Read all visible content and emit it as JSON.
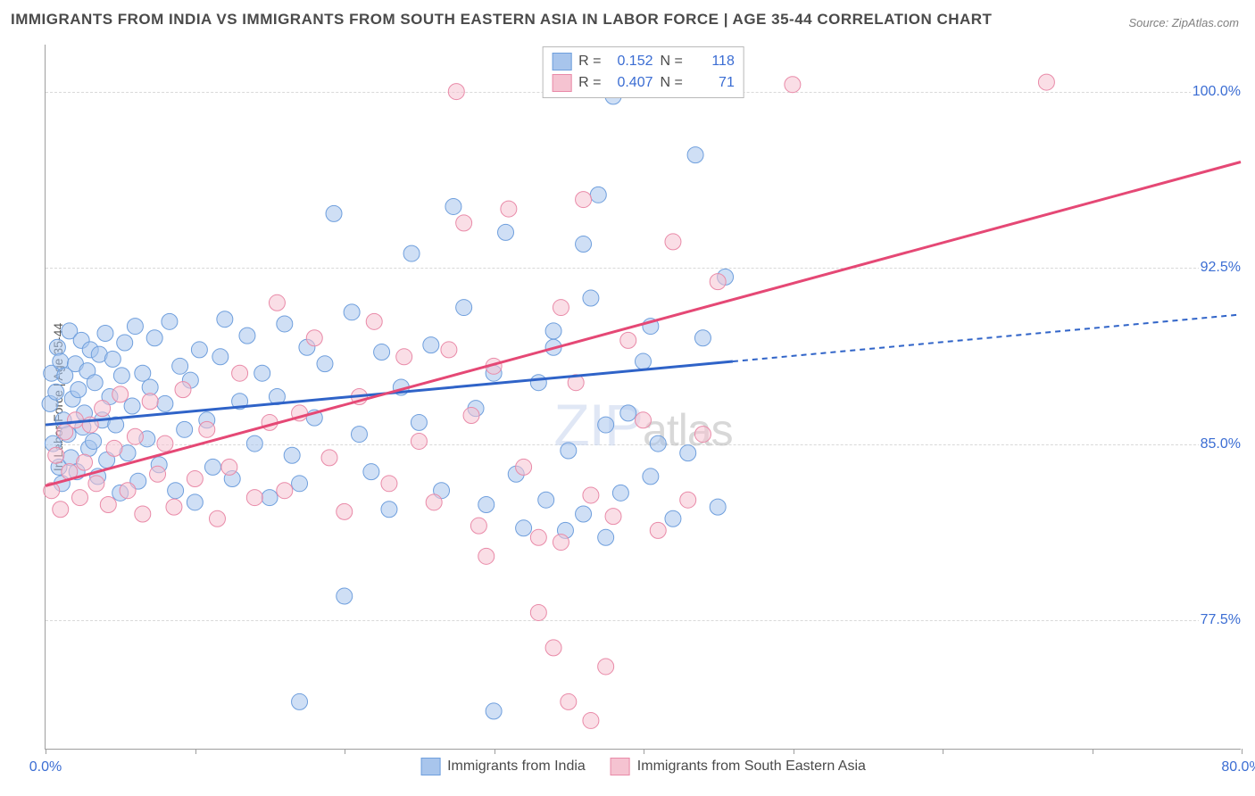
{
  "title": "IMMIGRANTS FROM INDIA VS IMMIGRANTS FROM SOUTH EASTERN ASIA IN LABOR FORCE | AGE 35-44 CORRELATION CHART",
  "source": "Source: ZipAtlas.com",
  "watermark_prefix": "ZIP",
  "watermark_suffix": "atlas",
  "y_axis_title": "In Labor Force | Age 35-44",
  "chart": {
    "type": "scatter",
    "background_color": "#ffffff",
    "grid_color": "#d9d9d9",
    "axis_color": "#9e9e9e",
    "tick_label_color": "#3b6dd3",
    "xlim": [
      0,
      80
    ],
    "ylim": [
      72,
      102
    ],
    "x_ticks": [
      0,
      10,
      20,
      30,
      40,
      50,
      60,
      70,
      80
    ],
    "x_tick_labels": [
      "0.0%",
      "",
      "",
      "",
      "",
      "",
      "",
      "",
      "80.0%"
    ],
    "y_grid": [
      77.5,
      85.0,
      92.5,
      100.0
    ],
    "y_tick_labels": [
      "77.5%",
      "85.0%",
      "92.5%",
      "100.0%"
    ],
    "marker_radius": 9,
    "marker_opacity": 0.55,
    "trend_line_width": 3
  },
  "series": [
    {
      "key": "india",
      "label": "Immigrants from India",
      "color_fill": "#a8c5ec",
      "color_stroke": "#6f9fdd",
      "line_color": "#2f63c8",
      "R": "0.152",
      "N": "118",
      "trend": {
        "x1": 0,
        "y1": 85.8,
        "x2_solid": 46,
        "y2_solid": 88.5,
        "x2": 80,
        "y2": 90.5
      },
      "points": [
        [
          0.3,
          86.7
        ],
        [
          0.4,
          88.0
        ],
        [
          0.5,
          85.0
        ],
        [
          0.7,
          87.2
        ],
        [
          0.8,
          89.1
        ],
        [
          0.9,
          84.0
        ],
        [
          1.0,
          88.5
        ],
        [
          1.1,
          83.3
        ],
        [
          1.2,
          86.0
        ],
        [
          1.3,
          87.9
        ],
        [
          1.5,
          85.4
        ],
        [
          1.6,
          89.8
        ],
        [
          1.7,
          84.4
        ],
        [
          1.8,
          86.9
        ],
        [
          2.0,
          88.4
        ],
        [
          2.1,
          83.8
        ],
        [
          2.2,
          87.3
        ],
        [
          2.4,
          89.4
        ],
        [
          2.5,
          85.7
        ],
        [
          2.6,
          86.3
        ],
        [
          2.8,
          88.1
        ],
        [
          2.9,
          84.8
        ],
        [
          3.0,
          89.0
        ],
        [
          3.2,
          85.1
        ],
        [
          3.3,
          87.6
        ],
        [
          3.5,
          83.6
        ],
        [
          3.6,
          88.8
        ],
        [
          3.8,
          86.0
        ],
        [
          4.0,
          89.7
        ],
        [
          4.1,
          84.3
        ],
        [
          4.3,
          87.0
        ],
        [
          4.5,
          88.6
        ],
        [
          4.7,
          85.8
        ],
        [
          5.0,
          82.9
        ],
        [
          5.1,
          87.9
        ],
        [
          5.3,
          89.3
        ],
        [
          5.5,
          84.6
        ],
        [
          5.8,
          86.6
        ],
        [
          6.0,
          90.0
        ],
        [
          6.2,
          83.4
        ],
        [
          6.5,
          88.0
        ],
        [
          6.8,
          85.2
        ],
        [
          7.0,
          87.4
        ],
        [
          7.3,
          89.5
        ],
        [
          7.6,
          84.1
        ],
        [
          8.0,
          86.7
        ],
        [
          8.3,
          90.2
        ],
        [
          8.7,
          83.0
        ],
        [
          9.0,
          88.3
        ],
        [
          9.3,
          85.6
        ],
        [
          9.7,
          87.7
        ],
        [
          10.0,
          82.5
        ],
        [
          10.3,
          89.0
        ],
        [
          10.8,
          86.0
        ],
        [
          11.2,
          84.0
        ],
        [
          11.7,
          88.7
        ],
        [
          12.0,
          90.3
        ],
        [
          12.5,
          83.5
        ],
        [
          13.0,
          86.8
        ],
        [
          13.5,
          89.6
        ],
        [
          14.0,
          85.0
        ],
        [
          14.5,
          88.0
        ],
        [
          15.0,
          82.7
        ],
        [
          15.5,
          87.0
        ],
        [
          16.0,
          90.1
        ],
        [
          16.5,
          84.5
        ],
        [
          17.0,
          83.3
        ],
        [
          17.5,
          89.1
        ],
        [
          18.0,
          86.1
        ],
        [
          18.7,
          88.4
        ],
        [
          19.3,
          94.8
        ],
        [
          20.0,
          78.5
        ],
        [
          20.5,
          90.6
        ],
        [
          21.0,
          85.4
        ],
        [
          21.8,
          83.8
        ],
        [
          22.5,
          88.9
        ],
        [
          23.0,
          82.2
        ],
        [
          23.8,
          87.4
        ],
        [
          24.5,
          93.1
        ],
        [
          25.0,
          85.9
        ],
        [
          25.8,
          89.2
        ],
        [
          26.5,
          83.0
        ],
        [
          27.3,
          95.1
        ],
        [
          28.0,
          90.8
        ],
        [
          28.8,
          86.5
        ],
        [
          29.5,
          82.4
        ],
        [
          30.0,
          88.0
        ],
        [
          30.8,
          94.0
        ],
        [
          31.5,
          83.7
        ],
        [
          32.0,
          81.4
        ],
        [
          33.0,
          87.6
        ],
        [
          34.0,
          89.8
        ],
        [
          35.0,
          84.7
        ],
        [
          36.0,
          82.0
        ],
        [
          36.5,
          91.2
        ],
        [
          37.0,
          95.6
        ],
        [
          37.5,
          81.0
        ],
        [
          38.0,
          99.8
        ],
        [
          39.0,
          86.3
        ],
        [
          40.0,
          88.5
        ],
        [
          40.5,
          90.0
        ],
        [
          42.0,
          81.8
        ],
        [
          43.0,
          84.6
        ],
        [
          43.5,
          97.3
        ],
        [
          44.0,
          89.5
        ],
        [
          45.0,
          82.3
        ],
        [
          46.0,
          100.2
        ],
        [
          17.0,
          74.0
        ],
        [
          30.0,
          73.6
        ],
        [
          34.0,
          89.1
        ],
        [
          33.5,
          82.6
        ],
        [
          34.8,
          81.3
        ],
        [
          36.0,
          93.5
        ],
        [
          37.5,
          85.8
        ],
        [
          38.5,
          82.9
        ],
        [
          40.5,
          83.6
        ],
        [
          41.0,
          85.0
        ],
        [
          45.5,
          92.1
        ]
      ]
    },
    {
      "key": "sea",
      "label": "Immigrants from South Eastern Asia",
      "color_fill": "#f5c3d1",
      "color_stroke": "#e98aa8",
      "line_color": "#e54875",
      "R": "0.407",
      "N": "71",
      "trend": {
        "x1": 0,
        "y1": 83.2,
        "x2_solid": 80,
        "y2_solid": 97.0,
        "x2": 80,
        "y2": 97.0
      },
      "points": [
        [
          0.4,
          83.0
        ],
        [
          0.7,
          84.5
        ],
        [
          1.0,
          82.2
        ],
        [
          1.3,
          85.5
        ],
        [
          1.6,
          83.8
        ],
        [
          2.0,
          86.0
        ],
        [
          2.3,
          82.7
        ],
        [
          2.6,
          84.2
        ],
        [
          3.0,
          85.8
        ],
        [
          3.4,
          83.3
        ],
        [
          3.8,
          86.5
        ],
        [
          4.2,
          82.4
        ],
        [
          4.6,
          84.8
        ],
        [
          5.0,
          87.1
        ],
        [
          5.5,
          83.0
        ],
        [
          6.0,
          85.3
        ],
        [
          6.5,
          82.0
        ],
        [
          7.0,
          86.8
        ],
        [
          7.5,
          83.7
        ],
        [
          8.0,
          85.0
        ],
        [
          8.6,
          82.3
        ],
        [
          9.2,
          87.3
        ],
        [
          10.0,
          83.5
        ],
        [
          10.8,
          85.6
        ],
        [
          11.5,
          81.8
        ],
        [
          12.3,
          84.0
        ],
        [
          13.0,
          88.0
        ],
        [
          14.0,
          82.7
        ],
        [
          15.0,
          85.9
        ],
        [
          15.5,
          91.0
        ],
        [
          16.0,
          83.0
        ],
        [
          17.0,
          86.3
        ],
        [
          18.0,
          89.5
        ],
        [
          19.0,
          84.4
        ],
        [
          20.0,
          82.1
        ],
        [
          21.0,
          87.0
        ],
        [
          22.0,
          90.2
        ],
        [
          23.0,
          83.3
        ],
        [
          24.0,
          88.7
        ],
        [
          25.0,
          85.1
        ],
        [
          26.0,
          82.5
        ],
        [
          27.0,
          89.0
        ],
        [
          28.0,
          94.4
        ],
        [
          28.5,
          86.2
        ],
        [
          29.0,
          81.5
        ],
        [
          30.0,
          88.3
        ],
        [
          31.0,
          95.0
        ],
        [
          32.0,
          84.0
        ],
        [
          33.0,
          81.0
        ],
        [
          34.0,
          76.3
        ],
        [
          34.5,
          90.8
        ],
        [
          35.5,
          87.6
        ],
        [
          36.0,
          95.4
        ],
        [
          36.5,
          82.8
        ],
        [
          37.5,
          75.5
        ],
        [
          38.0,
          81.9
        ],
        [
          39.0,
          89.4
        ],
        [
          40.0,
          86.0
        ],
        [
          41.0,
          81.3
        ],
        [
          42.0,
          93.6
        ],
        [
          43.0,
          82.6
        ],
        [
          44.0,
          85.4
        ],
        [
          27.5,
          100.0
        ],
        [
          45.0,
          91.9
        ],
        [
          50.0,
          100.3
        ],
        [
          67.0,
          100.4
        ],
        [
          35.0,
          74.0
        ],
        [
          36.5,
          73.2
        ],
        [
          29.5,
          80.2
        ],
        [
          33.0,
          77.8
        ],
        [
          34.5,
          80.8
        ]
      ]
    }
  ],
  "legend_top": {
    "r_label": "R =",
    "n_label": "N ="
  }
}
